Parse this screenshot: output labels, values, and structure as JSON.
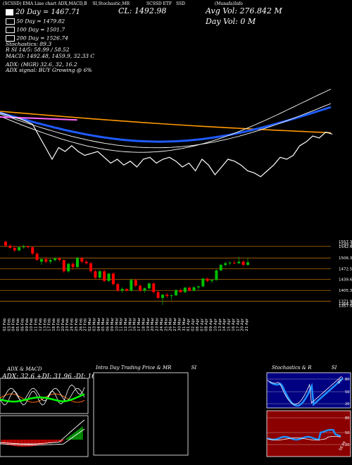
{
  "header": {
    "strip": [
      "(SCSSD) EMA Line chart ADX,MACD,B",
      "SI,Stochastic,MR",
      "SCSSD ETF",
      "SSD",
      "(Munafa)Info"
    ],
    "cl_label": "CL: ",
    "cl_value": "1492.98",
    "avg_vol_label": "Avg Vol: ",
    "avg_vol_value": "276.842  M",
    "day_vol_label": "Day Vol: ",
    "day_vol_value": "0   M"
  },
  "info": {
    "dma20": "20  Day = 1467.71",
    "dma50": "50  Day = 1479.82",
    "dma100": "100  Day = 1501.7",
    "dma200": "200  Day = 1526.74",
    "stochastics": "Stochastics: 89.3",
    "rsi": "R          SI 14/5: 58.99 / 58.52",
    "macd": "MACD: 1492.48,  1459.9,  32.33 C",
    "adx_line": "ADX:                    (MGR) 32.6,  32,  16.2",
    "adx_signal": "ADX  signal:                              BUY Growing @ 6%"
  },
  "price_labels": [
    "1557.32",
    "1549.34",
    "1542.44",
    "1506.37",
    "1472.59",
    "1439.61",
    "1405.34",
    "1371.96",
    "1364.37",
    "1357.58"
  ],
  "dates": [
    "02 Feb",
    "03 Feb",
    "04 Feb",
    "05 Feb",
    "06 Feb",
    "09 Feb",
    "10 Feb",
    "11 Feb",
    "12 Feb",
    "13 Feb",
    "17 Feb",
    "18 Feb",
    "19 Feb",
    "20 Feb",
    "23 Feb",
    "24 Feb",
    "25 Feb",
    "26 Feb",
    "27 Feb",
    "02 Mar",
    "03 Mar",
    "04 Mar",
    "05 Mar",
    "06 Mar",
    "09 Mar",
    "10 Mar",
    "11 Mar",
    "12 Mar",
    "13 Mar",
    "16 Mar",
    "17 Mar",
    "18 Mar",
    "19 Mar",
    "20 Mar",
    "23 Mar",
    "24 Mar",
    "25 Mar",
    "26 Mar",
    "27 Mar",
    "30 Mar",
    "31 Mar",
    "01 Apr",
    "02 Apr",
    "06 Apr",
    "07 Apr",
    "08 Apr",
    "09 Apr",
    "10 Apr",
    "13 Apr",
    "14 Apr",
    "15 Apr",
    "16 Apr",
    "17 Apr",
    "20 Apr",
    "21 Apr"
  ],
  "panels": {
    "adx_title": "ADX  & MACD",
    "adx_values": "ADX: 32.6  +DI: 31.96  -DI: 16.25",
    "intraday_title": "Intra Day Trading Price  & MR",
    "intraday_si": "SI",
    "stoch_title": "Stochastics & R",
    "stoch_si": "SI",
    "stoch_levels": [
      "80",
      "50",
      "20"
    ],
    "rsi_levels": [
      "80",
      "50",
      "20"
    ],
    "stoch_value": "89.3",
    "rsi_value": "58.99"
  },
  "colors": {
    "background": "#000000",
    "up_candle": "#00c000",
    "down_candle": "#ff0000",
    "ema_white": "#ffffff",
    "ema_blue": "#1e5bff",
    "ema_orange": "#ff9900",
    "ema_pink": "#ff66ff",
    "grid_orange": "#b36b00",
    "stoch_panel": "#000080",
    "rsi_panel": "#8b0000"
  },
  "chart_data": {
    "type": "candlestick",
    "price_axis_labels": [
      1557.32,
      1549.34,
      1542.44,
      1506.37,
      1472.59,
      1439.61,
      1405.34,
      1371.96,
      1364.37,
      1357.58
    ],
    "ohlc": [
      [
        1557,
        1560,
        1540,
        1545
      ],
      [
        1545,
        1550,
        1535,
        1538
      ],
      [
        1538,
        1545,
        1525,
        1530
      ],
      [
        1530,
        1542,
        1528,
        1540
      ],
      [
        1540,
        1548,
        1535,
        1542
      ],
      [
        1542,
        1546,
        1536,
        1540
      ],
      [
        1540,
        1543,
        1515,
        1520
      ],
      [
        1520,
        1524,
        1498,
        1500
      ],
      [
        1495,
        1505,
        1485,
        1503
      ],
      [
        1503,
        1510,
        1490,
        1495
      ],
      [
        1495,
        1505,
        1488,
        1500
      ],
      [
        1500,
        1508,
        1495,
        1505
      ],
      [
        1505,
        1510,
        1495,
        1500
      ],
      [
        1500,
        1502,
        1460,
        1465
      ],
      [
        1465,
        1492,
        1460,
        1488
      ],
      [
        1488,
        1493,
        1470,
        1478
      ],
      [
        1478,
        1510,
        1475,
        1506
      ],
      [
        1506,
        1509,
        1490,
        1495
      ],
      [
        1495,
        1500,
        1485,
        1490
      ],
      [
        1490,
        1495,
        1460,
        1465
      ],
      [
        1465,
        1470,
        1440,
        1445
      ],
      [
        1445,
        1470,
        1442,
        1465
      ],
      [
        1465,
        1470,
        1430,
        1435
      ],
      [
        1435,
        1460,
        1432,
        1458
      ],
      [
        1458,
        1462,
        1420,
        1425
      ],
      [
        1425,
        1430,
        1400,
        1405
      ],
      [
        1405,
        1415,
        1398,
        1410
      ],
      [
        1410,
        1413,
        1400,
        1405
      ],
      [
        1405,
        1442,
        1402,
        1438
      ],
      [
        1438,
        1441,
        1415,
        1420
      ],
      [
        1420,
        1425,
        1400,
        1405
      ],
      [
        1405,
        1415,
        1398,
        1412
      ],
      [
        1412,
        1430,
        1408,
        1427
      ],
      [
        1427,
        1430,
        1395,
        1400
      ],
      [
        1400,
        1405,
        1378,
        1382
      ],
      [
        1382,
        1394,
        1360,
        1392
      ],
      [
        1392,
        1398,
        1382,
        1388
      ],
      [
        1388,
        1394,
        1375,
        1390
      ],
      [
        1390,
        1410,
        1388,
        1406
      ],
      [
        1406,
        1412,
        1398,
        1400
      ],
      [
        1400,
        1416,
        1397,
        1414
      ],
      [
        1414,
        1418,
        1402,
        1405
      ],
      [
        1405,
        1418,
        1402,
        1415
      ],
      [
        1415,
        1420,
        1408,
        1418
      ],
      [
        1418,
        1445,
        1415,
        1442
      ],
      [
        1442,
        1446,
        1430,
        1435
      ],
      [
        1435,
        1440,
        1428,
        1438
      ],
      [
        1438,
        1470,
        1436,
        1468
      ],
      [
        1468,
        1488,
        1465,
        1485
      ],
      [
        1485,
        1495,
        1480,
        1490
      ],
      [
        1490,
        1496,
        1484,
        1492
      ],
      [
        1492,
        1500,
        1486,
        1490
      ],
      [
        1490,
        1510,
        1488,
        1495
      ],
      [
        1495,
        1500,
        1480,
        1485
      ],
      [
        1485,
        1506,
        1482,
        1493
      ]
    ],
    "horizontal_levels": [
      1542.44,
      1506.37,
      1472.59,
      1439.61,
      1405.34,
      1371.96
    ],
    "ema_series": [
      {
        "name": "20  Day",
        "color": "#ffffff"
      },
      {
        "name": "50  Day",
        "color": "#ffffff"
      },
      {
        "name": "100  Day",
        "color": "#1e5bff"
      },
      {
        "name": "200  Day",
        "color": "#ff9900"
      }
    ],
    "price_line": [
      1560,
      1555,
      1548,
      1545,
      1538,
      1530,
      1500,
      1470,
      1440,
      1470,
      1460,
      1475,
      1460,
      1450,
      1455,
      1460,
      1445,
      1430,
      1440,
      1425,
      1435,
      1420,
      1440,
      1445,
      1430,
      1440,
      1445,
      1435,
      1420,
      1430,
      1410,
      1440,
      1425,
      1400,
      1420,
      1440,
      1435,
      1425,
      1410,
      1405,
      1395,
      1410,
      1425,
      1445,
      1440,
      1450,
      1475,
      1485,
      1500,
      1495,
      1510,
      1505
    ]
  }
}
